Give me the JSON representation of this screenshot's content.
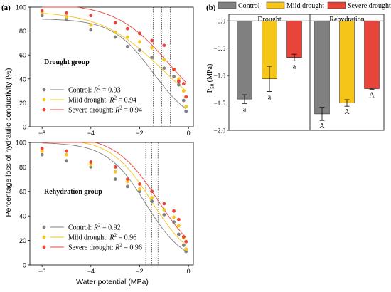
{
  "figure": {
    "panel_a_label": "(a)",
    "panel_b_label": "(b)",
    "ylabel_a": "Percentage loss of hydraulic conductivity (%)",
    "xlabel_a": "Water potential (MPa)",
    "ylabel_b": "P",
    "ylabel_b_sub": "50",
    "ylabel_b_unit": " (MPa)"
  },
  "colors": {
    "control": "#808080",
    "mild": "#F5C518",
    "severe": "#E8443A",
    "axis": "#000000"
  },
  "chart_data": [
    {
      "type": "scatter",
      "group_label": "Drought group",
      "xlim": [
        -6.5,
        0.2
      ],
      "ylim": [
        0,
        100
      ],
      "xticks": [
        -6,
        -4,
        -2,
        0
      ],
      "yticks": [
        0,
        20,
        40,
        60,
        80,
        100
      ],
      "xtick_labels": [
        "−6",
        "−4",
        "−2",
        "0"
      ],
      "ytick_labels": [
        "0",
        "20",
        "40",
        "60",
        "80",
        "100"
      ],
      "p50_lines": [
        -1.45,
        -1.1,
        -0.75
      ],
      "series": [
        {
          "name": "Control",
          "r2": "0.93",
          "color_key": "control",
          "a": 90.35,
          "b": 0.6,
          "x": [
            -6,
            -5,
            -4,
            -3,
            -2.5,
            -2,
            -1.5,
            -1,
            -0.6,
            -0.4,
            -0.2,
            -0.1
          ],
          "y": [
            93,
            90,
            81,
            75,
            67,
            64,
            58,
            49,
            42,
            35,
            22,
            13
          ]
        },
        {
          "name": "Mild drought",
          "r2": "0.94",
          "color_key": "mild",
          "a": 96.8,
          "b": 0.4,
          "x": [
            -6,
            -5,
            -4,
            -3,
            -2.5,
            -2,
            -1.5,
            -1,
            -0.6,
            -0.4,
            -0.2,
            -0.1
          ],
          "y": [
            96,
            92,
            85,
            79,
            75,
            71,
            66,
            56,
            48,
            40,
            30,
            17
          ]
        },
        {
          "name": "Severe drought",
          "r2": "0.94",
          "color_key": "severe",
          "a": 103.2,
          "b": 0.45,
          "x": [
            -6,
            -5,
            -4,
            -3,
            -2.5,
            -2,
            -1.5,
            -1,
            -0.6,
            -0.4,
            -0.2,
            -0.1
          ],
          "y": [
            97,
            95,
            93,
            87,
            82,
            78,
            72,
            68,
            48,
            38,
            36,
            25
          ]
        }
      ]
    },
    {
      "type": "scatter",
      "group_label": "Rehydration group",
      "xlim": [
        -6.5,
        0.2
      ],
      "ylim": [
        0,
        100
      ],
      "xticks": [
        -6,
        -4,
        -2,
        0
      ],
      "yticks": [
        0,
        20,
        40,
        60,
        80,
        100
      ],
      "xtick_labels": [
        "−6",
        "−4",
        "−2",
        "0"
      ],
      "ytick_labels": [
        "0",
        "20",
        "40",
        "60",
        "80",
        "100"
      ],
      "p50_lines": [
        -1.75,
        -1.5,
        -1.25
      ],
      "series": [
        {
          "name": "Control",
          "r2": "0.92",
          "color_key": "control",
          "a": 100,
          "b": 0.63,
          "x": [
            -6,
            -5,
            -4,
            -3,
            -2.5,
            -2,
            -1.5,
            -1,
            -0.6,
            -0.4,
            -0.2,
            -0.1
          ],
          "y": [
            90,
            85,
            80,
            70,
            64,
            60,
            52,
            41,
            35,
            25,
            16,
            11
          ]
        },
        {
          "name": "Mild drought",
          "r2": "0.96",
          "color_key": "mild",
          "a": 103.2,
          "b": 0.6,
          "x": [
            -6,
            -5,
            -4,
            -3,
            -2.5,
            -2,
            -1.5,
            -1,
            -0.6,
            -0.4,
            -0.2,
            -0.1
          ],
          "y": [
            93,
            90,
            82,
            76,
            68,
            62,
            55,
            45,
            39,
            32,
            22,
            13
          ]
        },
        {
          "name": "Severe drought",
          "r2": "0.96",
          "color_key": "severe",
          "a": 105.4,
          "b": 0.57,
          "x": [
            -6,
            -5,
            -4,
            -3,
            -2.5,
            -2,
            -1.5,
            -1,
            -0.6,
            -0.4,
            -0.2,
            -0.1
          ],
          "y": [
            95,
            93,
            84,
            80,
            70,
            66,
            60,
            50,
            44,
            37,
            23,
            19
          ]
        }
      ]
    },
    {
      "type": "bar",
      "groups": [
        "Drought",
        "Rehydration"
      ],
      "ylim": [
        -2.0,
        0.12
      ],
      "yticks": [
        0,
        -0.5,
        -1.0,
        -1.5,
        -2.0
      ],
      "ytick_labels": [
        "0.0",
        "−0.5",
        "−1.0",
        "−1.5",
        "−2.0"
      ],
      "legend_placement": "top",
      "series": [
        {
          "name": "Control",
          "color_key": "control",
          "values": [
            -1.43,
            -1.7
          ],
          "errors": [
            0.08,
            0.12
          ],
          "letters": [
            "a",
            "A"
          ]
        },
        {
          "name": "Mild drought",
          "color_key": "mild",
          "values": [
            -1.06,
            -1.5
          ],
          "errors": [
            0.23,
            0.06
          ],
          "letters": [
            "a",
            "A"
          ]
        },
        {
          "name": "Severe drought",
          "color_key": "severe",
          "values": [
            -0.67,
            -1.24
          ],
          "errors": [
            0.06,
            0.01
          ],
          "letters": [
            "a",
            "A"
          ]
        }
      ]
    }
  ]
}
